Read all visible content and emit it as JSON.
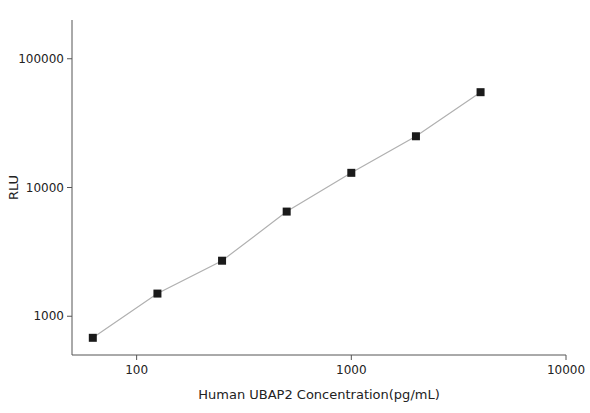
{
  "chart_data": {
    "type": "line",
    "x": [
      62.5,
      125,
      250,
      500,
      1000,
      2000,
      4000
    ],
    "series": [
      {
        "values": [
          680,
          1500,
          2700,
          6500,
          13000,
          25000,
          55000
        ],
        "color": "#1a1a1a",
        "marker": "square"
      }
    ],
    "xlabel": "Human UBAP2 Concentration(pg/mL)",
    "ylabel": "RLU",
    "xlim": [
      50,
      10000
    ],
    "ylim": [
      500,
      200000
    ],
    "xticks": [
      100,
      1000,
      10000
    ],
    "yticks": [
      1000,
      10000,
      100000
    ],
    "log": true,
    "grid": false
  }
}
